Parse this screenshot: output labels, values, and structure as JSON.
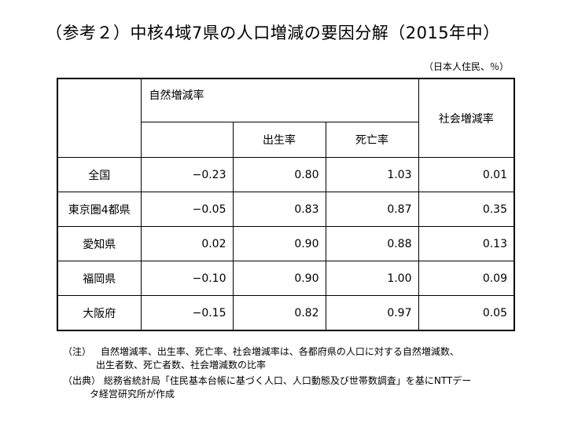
{
  "title": "（参考２）中核4域7県の人口増減の要因分解（2015年中）",
  "unit": "（日本人住民、％）",
  "table": {
    "header": {
      "natural": "自然増減率",
      "birth": "出生率",
      "death": "死亡率",
      "social": "社会増減率"
    },
    "rows": [
      {
        "label": "全国",
        "natural": "−0.23",
        "birth": "0.80",
        "death": "1.03",
        "social": "0.01"
      },
      {
        "label": "東京圏4都県",
        "natural": "−0.05",
        "birth": "0.83",
        "death": "0.87",
        "social": "0.35"
      },
      {
        "label": "愛知県",
        "natural": "0.02",
        "birth": "0.90",
        "death": "0.88",
        "social": "0.13"
      },
      {
        "label": "福岡県",
        "natural": "−0.10",
        "birth": "0.90",
        "death": "1.00",
        "social": "0.09"
      },
      {
        "label": "大阪府",
        "natural": "−0.15",
        "birth": "0.82",
        "death": "0.97",
        "social": "0.05"
      }
    ]
  },
  "notes": {
    "note_label": "（注）",
    "note_line1": "自然増減率、出生率、死亡率、社会増減率は、各都府県の人口に対する自然増減数、",
    "note_line2": "出生者数、死亡者数、社会増減数の比率",
    "source_label": "（出典）",
    "source_line1": "総務省統計局「住民基本台帳に基づく人口、人口動態及び世帯数調査」を基にNTTデー",
    "source_line2": "タ経営研究所が作成"
  }
}
